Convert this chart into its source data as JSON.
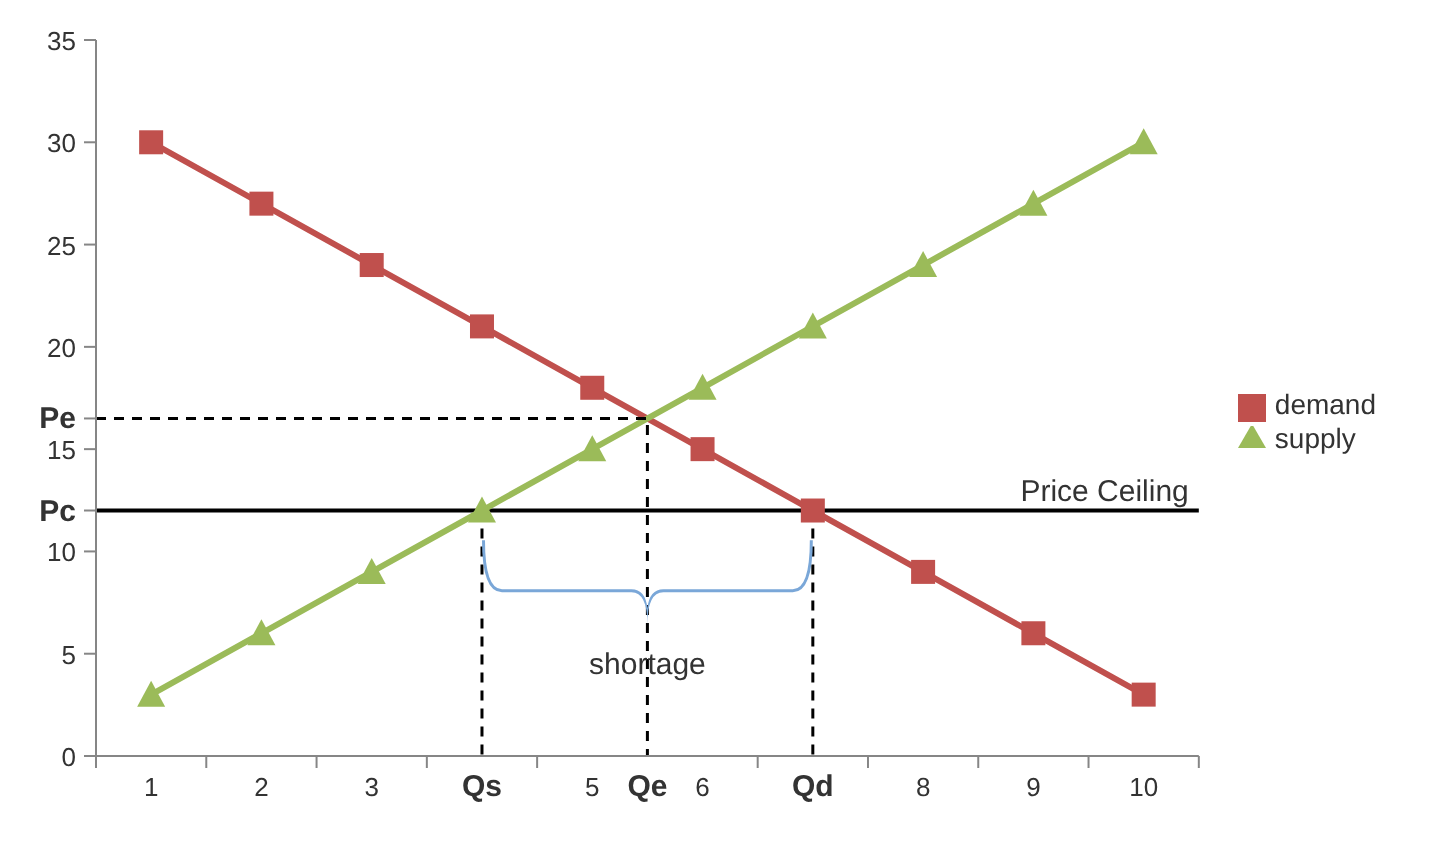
{
  "chart_data": {
    "type": "line",
    "x": [
      1,
      2,
      3,
      4,
      5,
      6,
      7,
      8,
      9,
      10
    ],
    "series": [
      {
        "name": "demand",
        "color": "#c0504d",
        "marker": "square",
        "values": [
          30,
          27,
          24,
          21,
          18,
          15,
          12,
          9,
          6,
          3
        ]
      },
      {
        "name": "supply",
        "color": "#9bbb59",
        "marker": "triangle",
        "values": [
          3,
          6,
          9,
          12,
          15,
          18,
          21,
          24,
          27,
          30
        ]
      },
      {
        "type": "line",
        "x": [
          0.5,
          5.5,
          5.5
        ],
        "values": [
          16.5,
          16.5,
          0
        ],
        "color": "#000000",
        "line_style": "dashed",
        "marker": "none"
      },
      {
        "type": "line",
        "x": [
          4,
          4
        ],
        "values": [
          12,
          0
        ],
        "color": "#000000",
        "line_style": "dashed",
        "marker": "none"
      },
      {
        "type": "line",
        "x": [
          7,
          7
        ],
        "values": [
          12,
          0
        ],
        "color": "#000000",
        "line_style": "dashed",
        "marker": "none"
      }
    ],
    "xlim": [
      0.5,
      10.5
    ],
    "xticks": [
      {
        "value": 0.5,
        "label": null
      },
      1,
      {
        "value": 1.5,
        "label": null
      },
      2,
      {
        "value": 2.5,
        "label": null
      },
      3,
      {
        "value": 3.5,
        "label": null
      },
      {
        "value": 4,
        "label": "Qs"
      },
      {
        "value": 4.5,
        "label": null
      },
      5,
      {
        "value": 5.5,
        "label": "Qe"
      },
      6,
      {
        "value": 6.5,
        "label": null
      },
      {
        "value": 7,
        "label": "Qd"
      },
      {
        "value": 7.5,
        "label": null
      },
      8,
      {
        "value": 8.5,
        "label": null
      },
      9,
      {
        "value": 9.5,
        "label": null
      },
      10,
      {
        "value": 10.5,
        "label": null
      }
    ],
    "ylim": [
      0,
      35
    ],
    "yticks": [
      0,
      5,
      10,
      {
        "value": 12,
        "label": "Pc"
      },
      15,
      {
        "value": 16.5,
        "label": "Pe"
      },
      20,
      25,
      30,
      35
    ],
    "ref_lines": [
      {
        "axis": "y",
        "value": 12,
        "label": "Price Ceiling",
        "color": "#000000"
      }
    ],
    "annotations": [
      {
        "text": "shortage",
        "x": 5.5,
        "y": 4
      }
    ],
    "legend": "right",
    "grid": false
  }
}
